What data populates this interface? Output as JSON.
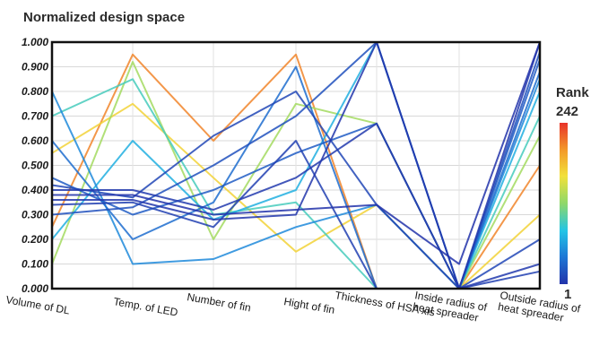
{
  "chart_data": {
    "type": "parallel-coordinates",
    "title": "Normalized design space",
    "axes": [
      [
        "Volume of DL"
      ],
      [
        "Temp. of LED"
      ],
      [
        "Number of fin"
      ],
      [
        "Hight of fin"
      ],
      [
        "Thickness of HSA xis"
      ],
      [
        "Inside radius of",
        "heat spreader"
      ],
      [
        "Outside radius of",
        "heat spreader"
      ]
    ],
    "ylim": [
      0,
      1
    ],
    "yticks": [
      "0.000",
      "0.100",
      "0.200",
      "0.300",
      "0.400",
      "0.500",
      "0.600",
      "0.700",
      "0.800",
      "0.900",
      "1.000"
    ],
    "colorbar": {
      "title": "Rank",
      "max_label": "242",
      "min_label": "1",
      "min": 1,
      "max": 242,
      "colors": [
        "#2233aa",
        "#1e78d6",
        "#22c4e6",
        "#8ed86a",
        "#f2e13a",
        "#f39a2a",
        "#e8332a"
      ]
    },
    "grid": true,
    "series": [
      {
        "rank": 1,
        "values": [
          0.38,
          0.38,
          0.3,
          0.32,
          0.34,
          0.1,
          1.0
        ]
      },
      {
        "rank": 3,
        "values": [
          0.36,
          0.36,
          0.28,
          0.3,
          1.0,
          0.0,
          1.0
        ]
      },
      {
        "rank": 5,
        "values": [
          0.4,
          0.4,
          0.32,
          0.45,
          0.67,
          0.0,
          0.1
        ]
      },
      {
        "rank": 8,
        "values": [
          0.34,
          0.35,
          0.25,
          0.6,
          0.0,
          0.0,
          0.07
        ]
      },
      {
        "rank": 12,
        "values": [
          0.42,
          0.37,
          0.62,
          0.8,
          0.34,
          0.0,
          0.2
        ]
      },
      {
        "rank": 18,
        "values": [
          0.3,
          0.33,
          0.5,
          0.7,
          1.0,
          0.0,
          0.96
        ]
      },
      {
        "rank": 25,
        "values": [
          0.45,
          0.3,
          0.4,
          0.55,
          0.67,
          0.0,
          0.93
        ]
      },
      {
        "rank": 35,
        "values": [
          0.6,
          0.2,
          0.35,
          0.9,
          0.0,
          0.0,
          0.88
        ]
      },
      {
        "rank": 50,
        "values": [
          0.8,
          0.1,
          0.12,
          0.25,
          0.34,
          0.0,
          0.85
        ]
      },
      {
        "rank": 70,
        "values": [
          0.2,
          0.6,
          0.28,
          0.4,
          1.0,
          0.0,
          0.8
        ]
      },
      {
        "rank": 95,
        "values": [
          0.7,
          0.85,
          0.3,
          0.35,
          0.0,
          0.0,
          0.7
        ]
      },
      {
        "rank": 130,
        "values": [
          0.1,
          0.92,
          0.2,
          0.75,
          0.67,
          0.0,
          0.62
        ]
      },
      {
        "rank": 170,
        "values": [
          0.55,
          0.75,
          0.45,
          0.15,
          0.34,
          0.0,
          0.3
        ]
      },
      {
        "rank": 210,
        "values": [
          0.25,
          0.95,
          0.6,
          0.95,
          0.0,
          0.0,
          0.5
        ]
      }
    ]
  }
}
